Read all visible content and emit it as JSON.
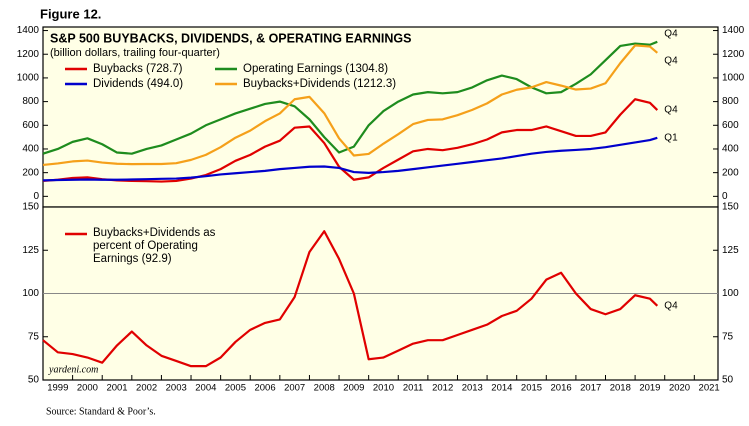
{
  "figure_label": "Figure 12.",
  "source": "Source: Standard & Poor’s.",
  "credit": "yardeni.com",
  "chart_data": [
    {
      "type": "line",
      "title": "S&P 500 BUYBACKS, DIVIDENDS, & OPERATING EARNINGS",
      "subtitle": "(billion dollars, trailing four-quarter)",
      "background": "#ffffe6",
      "x": [
        1999,
        1999.5,
        2000,
        2000.5,
        2001,
        2001.5,
        2002,
        2002.5,
        2003,
        2003.5,
        2004,
        2004.5,
        2005,
        2005.5,
        2006,
        2006.5,
        2007,
        2007.5,
        2008,
        2008.5,
        2009,
        2009.5,
        2010,
        2010.5,
        2011,
        2011.5,
        2012,
        2012.5,
        2013,
        2013.5,
        2014,
        2014.5,
        2015,
        2015.5,
        2016,
        2016.5,
        2017,
        2017.5,
        2018,
        2018.5,
        2019,
        2019.5,
        2019.75
      ],
      "xlim": [
        1999,
        2021.8
      ],
      "ylim": [
        -90,
        1430
      ],
      "yticks": [
        0,
        200,
        400,
        600,
        800,
        1000,
        1200,
        1400
      ],
      "series": [
        {
          "name": "Buybacks (728.7)",
          "color": "#e00000",
          "end_label": "Q4",
          "values": [
            130,
            140,
            155,
            160,
            145,
            135,
            130,
            128,
            125,
            130,
            150,
            180,
            230,
            300,
            350,
            420,
            470,
            580,
            590,
            450,
            250,
            140,
            160,
            240,
            310,
            380,
            400,
            390,
            410,
            440,
            480,
            540,
            560,
            560,
            590,
            550,
            510,
            510,
            540,
            690,
            820,
            790,
            728.7
          ]
        },
        {
          "name": "Dividends (494.0)",
          "color": "#0000cc",
          "end_label": "Q1",
          "values": [
            135,
            138,
            140,
            142,
            140,
            140,
            142,
            145,
            148,
            150,
            158,
            170,
            185,
            195,
            205,
            215,
            230,
            240,
            250,
            252,
            240,
            205,
            198,
            205,
            215,
            230,
            245,
            260,
            275,
            290,
            305,
            320,
            340,
            360,
            375,
            385,
            392,
            400,
            415,
            435,
            455,
            475,
            494.0
          ]
        },
        {
          "name": "Operating Earnings (1304.8)",
          "color": "#1e8c1e",
          "end_label": "Q4",
          "values": [
            360,
            400,
            460,
            490,
            440,
            370,
            360,
            400,
            430,
            480,
            530,
            600,
            650,
            700,
            740,
            780,
            800,
            760,
            650,
            500,
            370,
            420,
            600,
            720,
            800,
            860,
            880,
            870,
            880,
            920,
            980,
            1020,
            990,
            920,
            870,
            880,
            950,
            1030,
            1150,
            1270,
            1290,
            1280,
            1304.8
          ]
        },
        {
          "name": "Buybacks+Dividends (1212.3)",
          "color": "#f5a01a",
          "end_label": "Q4",
          "values": [
            265,
            278,
            295,
            302,
            285,
            275,
            272,
            273,
            273,
            280,
            308,
            350,
            415,
            495,
            555,
            635,
            700,
            820,
            840,
            702,
            490,
            345,
            358,
            445,
            525,
            610,
            645,
            650,
            685,
            730,
            785,
            860,
            900,
            920,
            965,
            935,
            902,
            910,
            955,
            1125,
            1275,
            1265,
            1212.3
          ]
        }
      ]
    },
    {
      "type": "line",
      "background": "#ffffe6",
      "x": [
        1999,
        1999.5,
        2000,
        2000.5,
        2001,
        2001.5,
        2002,
        2002.5,
        2003,
        2003.5,
        2004,
        2004.5,
        2005,
        2005.5,
        2006,
        2006.5,
        2007,
        2007.5,
        2008,
        2008.5,
        2009,
        2009.5,
        2010,
        2010.5,
        2011,
        2011.5,
        2012,
        2012.5,
        2013,
        2013.5,
        2014,
        2014.5,
        2015,
        2015.5,
        2016,
        2016.5,
        2017,
        2017.5,
        2018,
        2018.5,
        2019,
        2019.5,
        2019.75
      ],
      "xlim": [
        1999,
        2021.8
      ],
      "xticks": [
        1999,
        2000,
        2001,
        2002,
        2003,
        2004,
        2005,
        2006,
        2007,
        2008,
        2009,
        2010,
        2011,
        2012,
        2013,
        2014,
        2015,
        2016,
        2017,
        2018,
        2019,
        2020,
        2021
      ],
      "ylim": [
        50,
        150
      ],
      "yticks": [
        50,
        75,
        100,
        125,
        150
      ],
      "reference_line": 100,
      "series": [
        {
          "name": "Buybacks+Dividends as percent of Operating Earnings (92.9)",
          "color": "#e00000",
          "end_label": "Q4",
          "values": [
            73,
            66,
            65,
            63,
            60,
            70,
            78,
            70,
            64,
            61,
            58,
            58,
            63,
            72,
            79,
            83,
            85,
            98,
            124,
            136,
            120,
            100,
            62,
            63,
            67,
            71,
            73,
            73,
            76,
            79,
            82,
            87,
            90,
            97,
            108,
            112,
            100,
            91,
            88,
            91,
            99,
            97,
            92.9
          ]
        }
      ]
    }
  ]
}
